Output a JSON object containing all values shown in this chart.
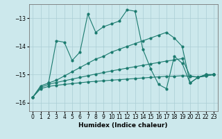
{
  "title": "",
  "xlabel": "Humidex (Indice chaleur)",
  "bg_color": "#cce8ec",
  "grid_color": "#aacdd4",
  "line_color": "#1a7a6e",
  "xlim": [
    -0.5,
    23.5
  ],
  "ylim": [
    -16.3,
    -12.5
  ],
  "yticks": [
    -16,
    -15,
    -14,
    -13
  ],
  "xticks": [
    0,
    1,
    2,
    3,
    4,
    5,
    6,
    7,
    8,
    9,
    10,
    11,
    12,
    13,
    14,
    15,
    16,
    17,
    18,
    19,
    20,
    21,
    22,
    23
  ],
  "s1_x": [
    2,
    3,
    4,
    5,
    6,
    7,
    8,
    9,
    10,
    11,
    12,
    13,
    14,
    15,
    16,
    17,
    18,
    19,
    20,
    21,
    22,
    23
  ],
  "s1_y": [
    -15.3,
    -13.8,
    -13.85,
    -14.5,
    -14.2,
    -12.85,
    -13.5,
    -13.3,
    -13.2,
    -13.1,
    -12.7,
    -12.75,
    -14.1,
    -14.8,
    -15.35,
    -15.5,
    -14.35,
    -14.6,
    -15.3,
    -15.1,
    -15.0,
    -15.0
  ],
  "s2_x": [
    0,
    1,
    2,
    3,
    4,
    5,
    6,
    7,
    8,
    9,
    10,
    11,
    12,
    13,
    14,
    15,
    16,
    17,
    18,
    19,
    20,
    21,
    22,
    23
  ],
  "s2_y": [
    -15.8,
    -15.4,
    -15.3,
    -15.2,
    -15.05,
    -14.9,
    -14.75,
    -14.6,
    -14.45,
    -14.35,
    -14.2,
    -14.1,
    -14.0,
    -13.9,
    -13.8,
    -13.7,
    -13.6,
    -13.5,
    -13.7,
    -14.0,
    -15.3,
    -15.1,
    -15.0,
    -15.0
  ],
  "s3_x": [
    0,
    1,
    2,
    3,
    4,
    5,
    6,
    7,
    8,
    9,
    10,
    11,
    12,
    13,
    14,
    15,
    16,
    17,
    18,
    19,
    20,
    21,
    22,
    23
  ],
  "s3_y": [
    -15.8,
    -15.45,
    -15.35,
    -15.28,
    -15.22,
    -15.16,
    -15.1,
    -15.04,
    -14.98,
    -14.93,
    -14.87,
    -14.82,
    -14.77,
    -14.72,
    -14.67,
    -14.62,
    -14.57,
    -14.52,
    -14.48,
    -14.43,
    -15.05,
    -15.1,
    -15.05,
    -15.0
  ],
  "s4_x": [
    0,
    1,
    2,
    3,
    4,
    5,
    6,
    7,
    8,
    9,
    10,
    11,
    12,
    13,
    14,
    15,
    16,
    17,
    18,
    19,
    20,
    21,
    22,
    23
  ],
  "s4_y": [
    -15.8,
    -15.5,
    -15.42,
    -15.38,
    -15.35,
    -15.32,
    -15.29,
    -15.26,
    -15.24,
    -15.22,
    -15.2,
    -15.18,
    -15.16,
    -15.14,
    -15.12,
    -15.1,
    -15.08,
    -15.06,
    -15.06,
    -15.04,
    -15.06,
    -15.08,
    -15.05,
    -15.0
  ]
}
